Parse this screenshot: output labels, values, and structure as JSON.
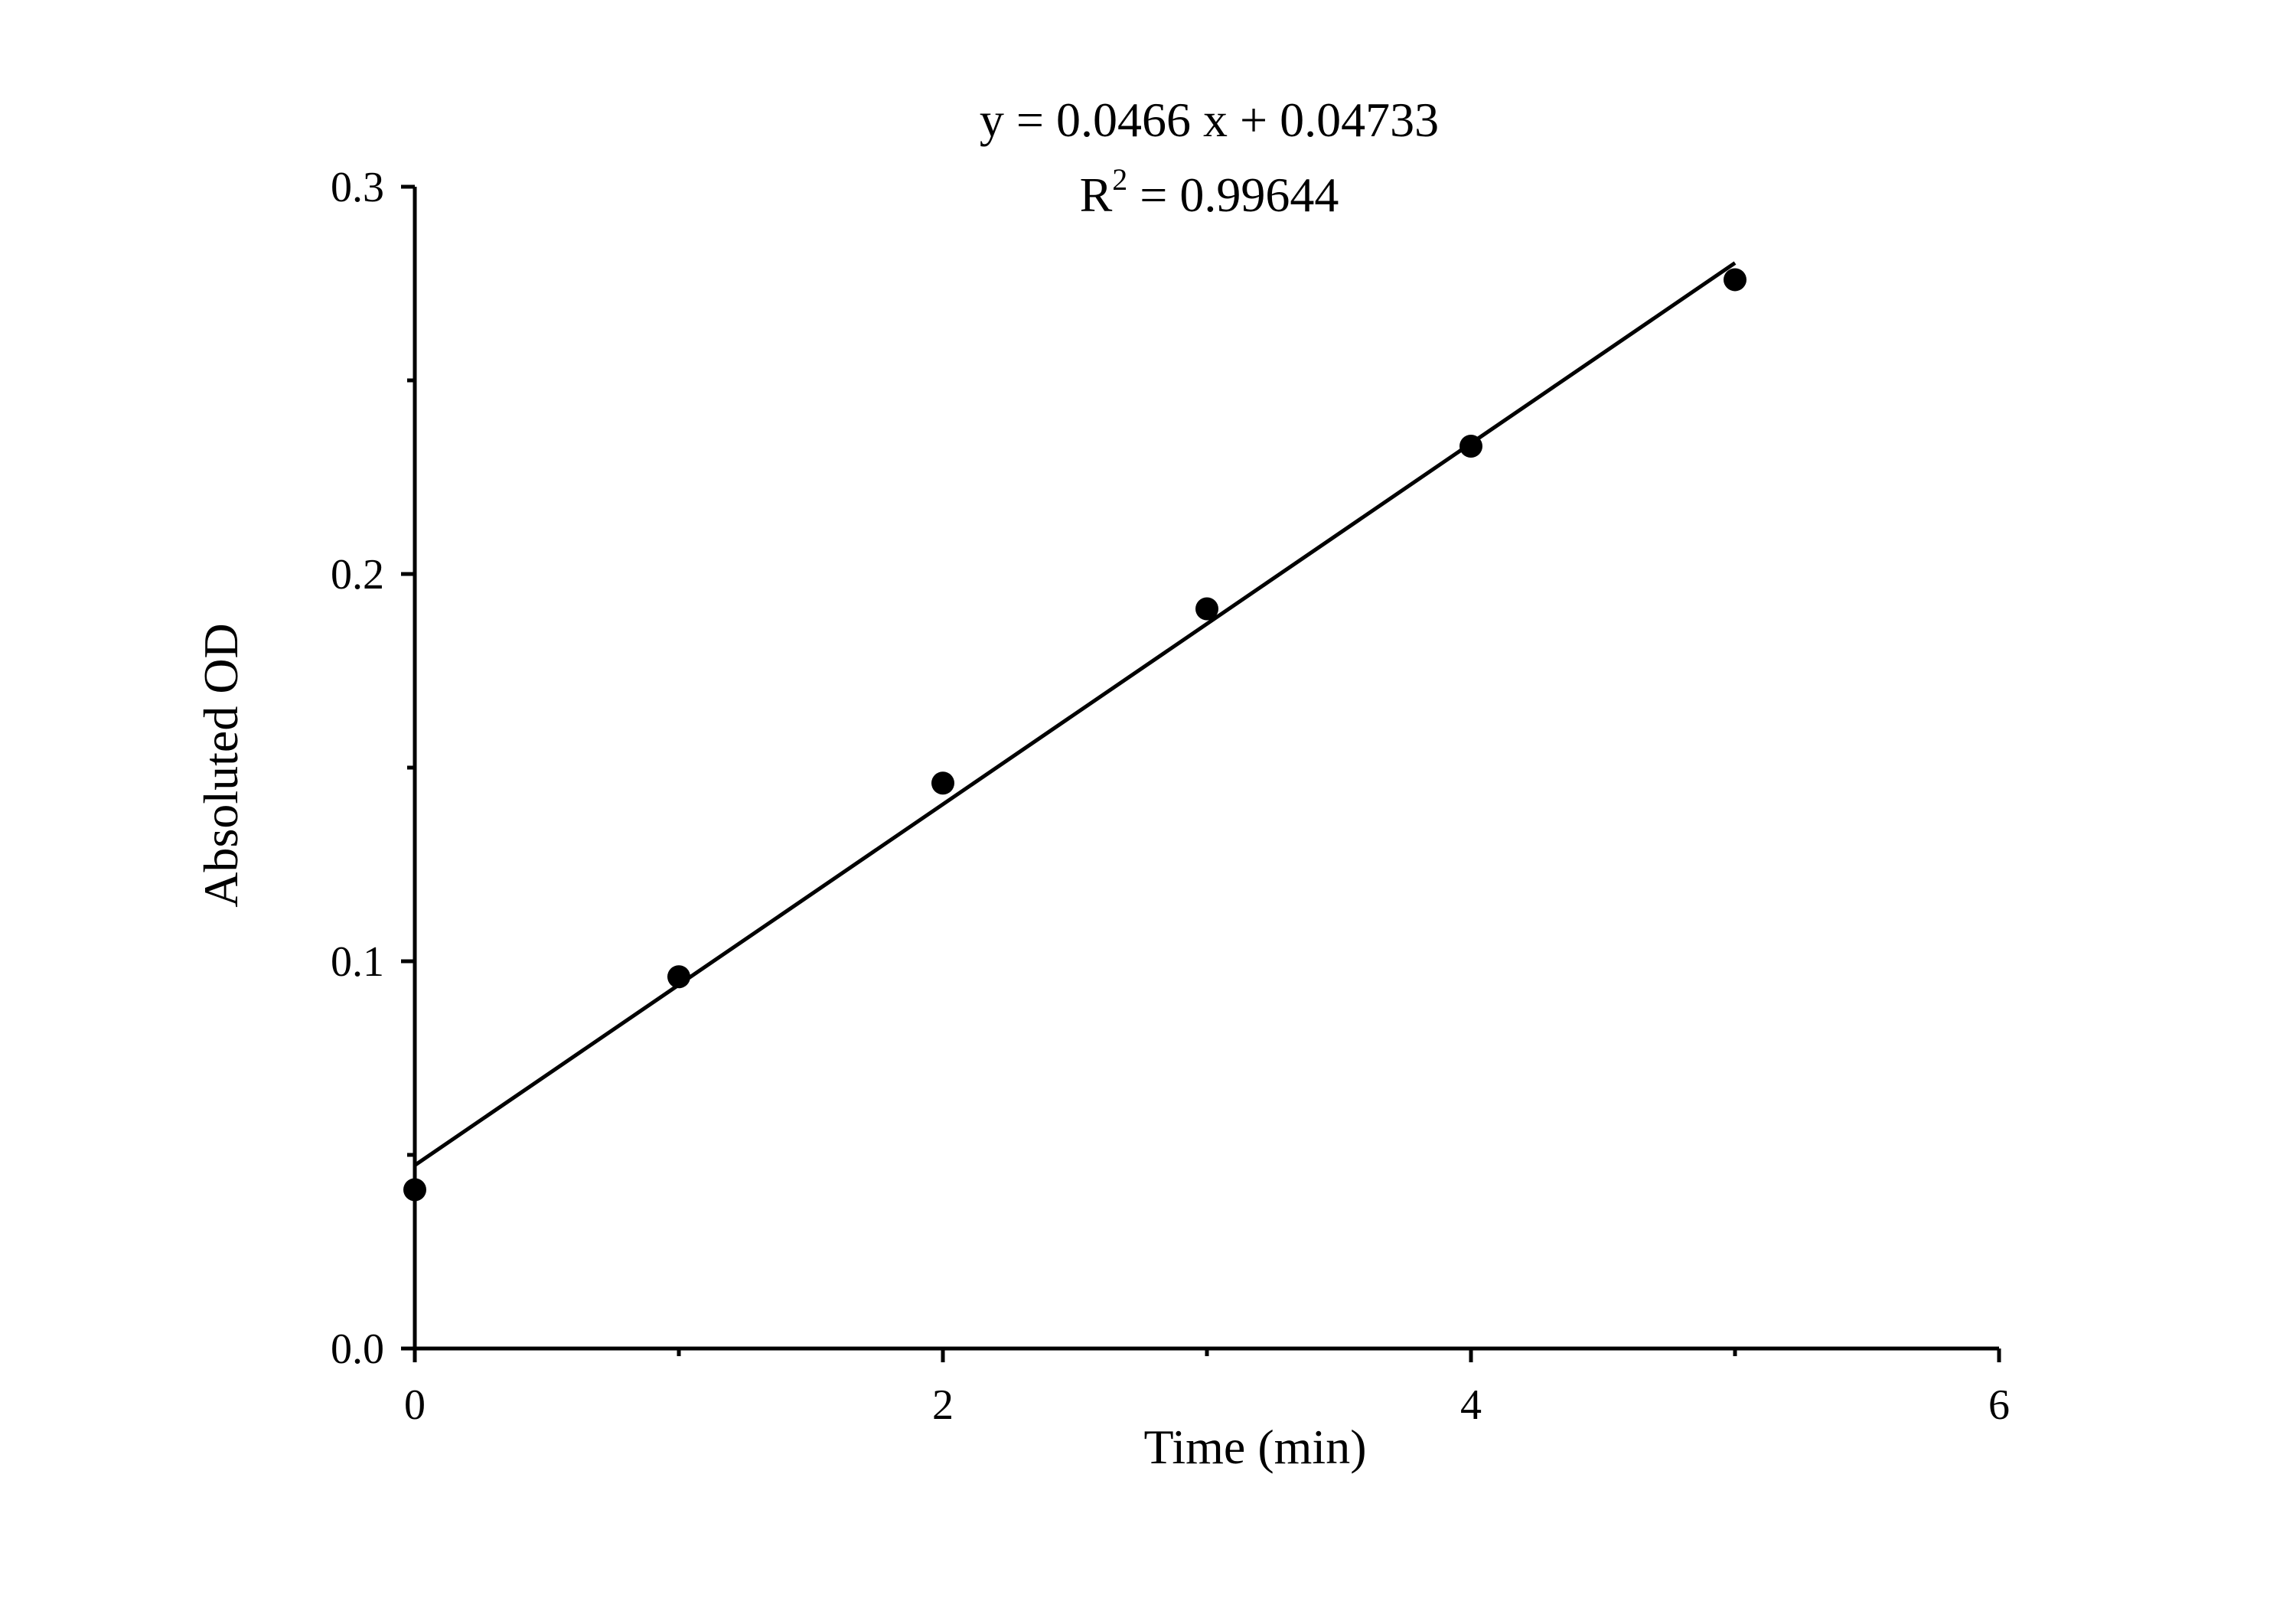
{
  "chart_data": {
    "type": "scatter",
    "title": "",
    "annotations": {
      "equation": "y = 0.0466 x + 0.04733",
      "r2_prefix": "R",
      "r2_superscript": "2",
      "r2_value": " = 0.99644"
    },
    "xlabel": "Time (min)",
    "ylabel": "Absoluted OD",
    "xlim": [
      0,
      6
    ],
    "ylim": [
      0,
      0.3
    ],
    "x_ticks": [
      0,
      2,
      4,
      6
    ],
    "x_tick_labels": [
      "0",
      "2",
      "4",
      "6"
    ],
    "x_minor_ticks": [
      1,
      3,
      5
    ],
    "y_ticks": [
      0,
      0.1,
      0.2,
      0.3
    ],
    "y_tick_labels": [
      "0.0",
      "0.1",
      "0.2",
      "0.3"
    ],
    "y_minor_ticks": [
      0.05,
      0.15,
      0.25
    ],
    "grid": false,
    "legend": "none",
    "series": [
      {
        "x": [
          0,
          1,
          2,
          3,
          4,
          5
        ],
        "y": [
          0.041,
          0.096,
          0.146,
          0.191,
          0.233,
          0.276
        ],
        "marker": "filled-circle",
        "color": "#000000"
      }
    ],
    "fit": {
      "slope": 0.0466,
      "intercept": 0.04733,
      "x_range": [
        0,
        5
      ],
      "color": "#000000"
    }
  }
}
